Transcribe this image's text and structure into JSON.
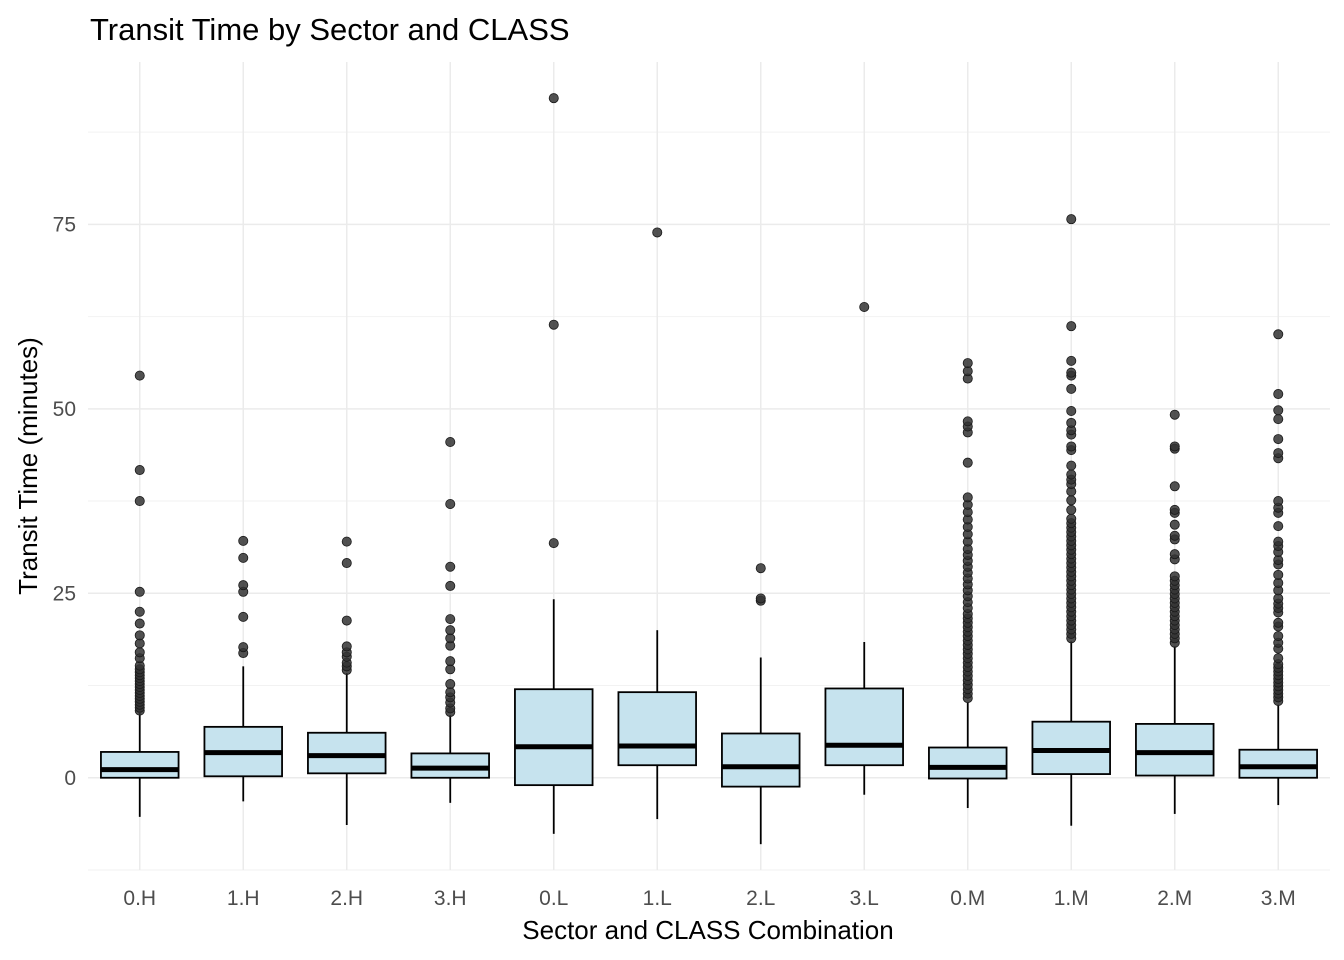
{
  "chart_data": {
    "type": "boxplot",
    "title": "Transit Time by Sector and CLASS",
    "xlabel": "Sector and CLASS Combination",
    "ylabel": "Transit Time (minutes)",
    "ylim": [
      -12.5,
      97
    ],
    "yticks": [
      0,
      25,
      50,
      75
    ],
    "grid": true,
    "box_fill": "#c6e3ee",
    "box_stroke": "#000000",
    "outlier_color": "#333333",
    "categories": [
      "0.H",
      "1.H",
      "2.H",
      "3.H",
      "0.L",
      "1.L",
      "2.L",
      "3.L",
      "0.M",
      "1.M",
      "2.M",
      "3.M"
    ],
    "boxes": [
      {
        "category": "0.H",
        "whisker_low": -5.3,
        "q1": 0.0,
        "median": 1.1,
        "q3": 3.5,
        "whisker_high": 8.8,
        "outliers": [
          9.1,
          9.5,
          9.9,
          10.3,
          10.7,
          11.1,
          11.5,
          11.9,
          12.3,
          12.7,
          13.1,
          13.5,
          13.9,
          14.3,
          14.7,
          15.2,
          16.2,
          17.0,
          18.2,
          19.3,
          20.9,
          22.5,
          25.2,
          37.5,
          41.7,
          54.5
        ]
      },
      {
        "category": "1.H",
        "whisker_low": -3.2,
        "q1": 0.2,
        "median": 3.4,
        "q3": 6.9,
        "whisker_high": 15.1,
        "outliers": [
          16.9,
          17.7,
          21.8,
          25.2,
          26.1,
          29.8,
          32.1
        ]
      },
      {
        "category": "2.H",
        "whisker_low": -6.4,
        "q1": 0.6,
        "median": 3.0,
        "q3": 6.1,
        "whisker_high": 14.2,
        "outliers": [
          14.6,
          15.1,
          15.6,
          16.4,
          17.0,
          17.8,
          21.3,
          29.1,
          32.0
        ]
      },
      {
        "category": "3.H",
        "whisker_low": -3.4,
        "q1": 0.0,
        "median": 1.3,
        "q3": 3.3,
        "whisker_high": 8.5,
        "outliers": [
          8.9,
          9.4,
          10.2,
          10.9,
          11.6,
          12.7,
          14.7,
          15.8,
          17.9,
          18.9,
          20.0,
          21.5,
          26.0,
          28.6,
          37.1,
          45.5
        ]
      },
      {
        "category": "0.L",
        "whisker_low": -7.6,
        "q1": -1.0,
        "median": 4.2,
        "q3": 12.0,
        "whisker_high": 24.2,
        "outliers": [
          31.8,
          61.4,
          92.1
        ]
      },
      {
        "category": "1.L",
        "whisker_low": -5.6,
        "q1": 1.7,
        "median": 4.3,
        "q3": 11.6,
        "whisker_high": 20.0,
        "outliers": [
          73.9
        ]
      },
      {
        "category": "2.L",
        "whisker_low": -9.0,
        "q1": -1.2,
        "median": 1.5,
        "q3": 6.0,
        "whisker_high": 16.3,
        "outliers": [
          24.0,
          24.3,
          28.4
        ]
      },
      {
        "category": "3.L",
        "whisker_low": -2.3,
        "q1": 1.7,
        "median": 4.4,
        "q3": 12.1,
        "whisker_high": 18.4,
        "outliers": [
          63.8
        ]
      },
      {
        "category": "0.M",
        "whisker_low": -4.1,
        "q1": -0.1,
        "median": 1.4,
        "q3": 4.1,
        "whisker_high": 10.2,
        "outliers": [
          10.8,
          11.4,
          12.0,
          12.6,
          13.2,
          13.8,
          14.4,
          15.0,
          15.6,
          16.2,
          16.8,
          17.4,
          18.0,
          18.6,
          19.2,
          19.8,
          20.4,
          21.0,
          21.6,
          22.2,
          23.0,
          23.8,
          24.6,
          25.4,
          26.2,
          27.0,
          27.8,
          28.6,
          29.4,
          30.2,
          31.0,
          32.0,
          33.0,
          34.0,
          35.0,
          36.0,
          37.0,
          38.0,
          42.7,
          46.8,
          47.6,
          48.3,
          54.1,
          55.1,
          56.2
        ]
      },
      {
        "category": "1.M",
        "whisker_low": -6.5,
        "q1": 0.5,
        "median": 3.7,
        "q3": 7.6,
        "whisker_high": 18.5,
        "outliers": [
          18.9,
          19.5,
          20.1,
          20.7,
          21.3,
          21.9,
          22.5,
          23.1,
          23.7,
          24.3,
          24.9,
          25.5,
          26.1,
          26.7,
          27.3,
          27.9,
          28.5,
          29.1,
          29.7,
          30.3,
          30.9,
          31.5,
          32.1,
          32.7,
          33.3,
          33.9,
          34.5,
          35.1,
          36.3,
          37.6,
          38.8,
          39.8,
          40.4,
          41.1,
          42.3,
          44.4,
          44.9,
          46.5,
          47.1,
          48.1,
          49.7,
          52.7,
          54.5,
          54.9,
          56.5,
          61.2,
          75.7
        ]
      },
      {
        "category": "2.M",
        "whisker_low": -4.9,
        "q1": 0.3,
        "median": 3.4,
        "q3": 7.3,
        "whisker_high": 17.8,
        "outliers": [
          18.3,
          18.9,
          19.5,
          20.1,
          20.7,
          21.3,
          21.9,
          22.5,
          23.1,
          23.7,
          24.3,
          24.9,
          25.5,
          26.1,
          26.7,
          27.3,
          29.6,
          30.3,
          32.3,
          32.8,
          34.3,
          35.9,
          36.3,
          39.5,
          44.6,
          44.9,
          49.2
        ]
      },
      {
        "category": "3.M",
        "whisker_low": -3.7,
        "q1": 0.0,
        "median": 1.5,
        "q3": 3.8,
        "whisker_high": 9.9,
        "outliers": [
          10.4,
          10.9,
          11.4,
          11.9,
          12.4,
          12.9,
          13.4,
          13.9,
          14.4,
          14.9,
          15.4,
          16.2,
          17.5,
          18.3,
          19.2,
          20.5,
          21.0,
          22.4,
          23.0,
          23.6,
          24.3,
          25.4,
          26.4,
          27.5,
          28.9,
          29.5,
          30.6,
          31.4,
          32.0,
          34.1,
          35.9,
          36.6,
          37.5,
          43.3,
          44.0,
          45.9,
          48.6,
          49.8,
          52.0,
          60.1
        ]
      }
    ]
  }
}
